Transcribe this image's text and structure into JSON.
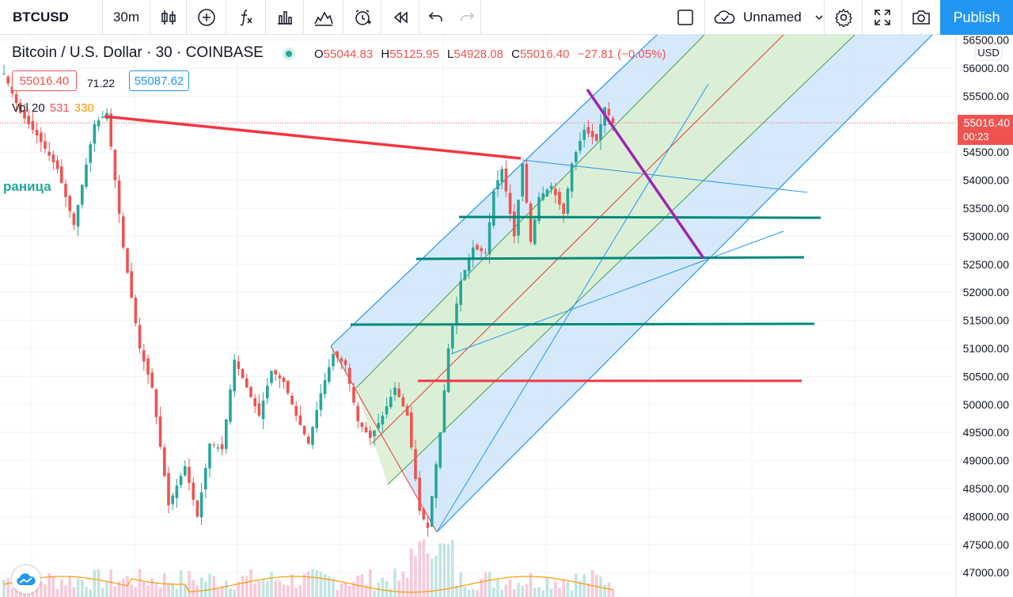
{
  "toolbar": {
    "symbol": "BTCUSD",
    "interval": "30m",
    "save_label": "Unnamed",
    "publish_label": "Publish",
    "icons": [
      "candles-icon",
      "add-indicator-icon",
      "fx-icon",
      "bar-chart-icon",
      "templates-icon",
      "alert-icon",
      "replay-icon",
      "undo-icon",
      "redo-icon",
      "layout-icon",
      "cloud-icon",
      "settings-icon",
      "fullscreen-icon",
      "camera-icon"
    ]
  },
  "legend": {
    "title": "Bitcoin / U.S. Dollar · 30 · COINBASE",
    "o_label": "O",
    "o": "55044.83",
    "h_label": "H",
    "h": "55125.95",
    "l_label": "L",
    "l": "54928.08",
    "c_label": "C",
    "c": "55016.40",
    "change": "−27.81 (−0.05%)",
    "bid": "55016.40",
    "spread": "71.22",
    "ask": "55087.62",
    "vol_label": "Vol 20",
    "vol_value": "531",
    "vol_ma": "330",
    "side_text": "раница"
  },
  "axis": {
    "currency": "USD",
    "last_price": "55016.40",
    "countdown": "00:23",
    "ticks": [
      "56500.00",
      "56000.00",
      "55500.00",
      "55000.00",
      "54500.00",
      "54000.00",
      "53500.00",
      "53000.00",
      "52500.00",
      "52000.00",
      "51500.00",
      "51000.00",
      "50500.00",
      "50000.00",
      "49500.00",
      "49000.00",
      "48500.00",
      "48000.00",
      "47500.00",
      "47000.00"
    ]
  },
  "colors": {
    "up": "#26a69a",
    "down": "#ef5350",
    "accent": "#2196f3",
    "channel_fill": "#cfe5fa",
    "inner_fill": "#dcefd3",
    "pitch": "#9c27b0",
    "level": "#00897b"
  },
  "chart_data": {
    "type": "candlestick",
    "symbol": "BTCUSD",
    "timeframe": "30",
    "exchange": "COINBASE",
    "ylim": [
      46750,
      56600
    ],
    "last": 55016.4,
    "key_path": [
      [
        0,
        55900
      ],
      [
        4,
        55200
      ],
      [
        8,
        54800
      ],
      [
        13,
        54200
      ],
      [
        17,
        53200
      ],
      [
        22,
        55000
      ],
      [
        25,
        55200
      ],
      [
        29,
        52800
      ],
      [
        33,
        51000
      ],
      [
        36,
        50300
      ],
      [
        40,
        48200
      ],
      [
        44,
        48900
      ],
      [
        47,
        48000
      ],
      [
        50,
        49300
      ],
      [
        53,
        49200
      ],
      [
        56,
        50800
      ],
      [
        59,
        50300
      ],
      [
        62,
        49800
      ],
      [
        65,
        50600
      ],
      [
        68,
        50400
      ],
      [
        71,
        49800
      ],
      [
        74,
        49300
      ],
      [
        77,
        50200
      ],
      [
        80,
        50900
      ],
      [
        83,
        50700
      ],
      [
        86,
        49700
      ],
      [
        89,
        49400
      ],
      [
        92,
        49800
      ],
      [
        95,
        50300
      ],
      [
        98,
        49800
      ],
      [
        101,
        48100
      ],
      [
        103,
        47800
      ],
      [
        106,
        49500
      ],
      [
        108,
        51000
      ],
      [
        111,
        52200
      ],
      [
        114,
        52800
      ],
      [
        117,
        52700
      ],
      [
        119,
        53800
      ],
      [
        121,
        54200
      ],
      [
        124,
        53000
      ],
      [
        126,
        54300
      ],
      [
        128,
        52900
      ],
      [
        130,
        53700
      ],
      [
        133,
        53900
      ],
      [
        136,
        53400
      ],
      [
        138,
        54300
      ],
      [
        141,
        54900
      ],
      [
        144,
        54700
      ],
      [
        146,
        55300
      ],
      [
        148,
        55016
      ]
    ],
    "volume_ma_label": "330"
  },
  "drawings": {
    "resistance_line": {
      "from": [
        24,
        55100
      ],
      "to": [
        120,
        54400
      ]
    },
    "support_levels": [
      {
        "price": 53320,
        "from": 108,
        "to": 192
      },
      {
        "price": 52570,
        "from": 98,
        "to": 188
      },
      {
        "price": 51400,
        "from": 83,
        "to": 191
      },
      {
        "price": 50420,
        "from": 98,
        "to": 188,
        "color": "red"
      }
    ],
    "pitchfork_line": {
      "from": [
        138,
        55600
      ],
      "to": [
        165,
        52600
      ]
    }
  }
}
